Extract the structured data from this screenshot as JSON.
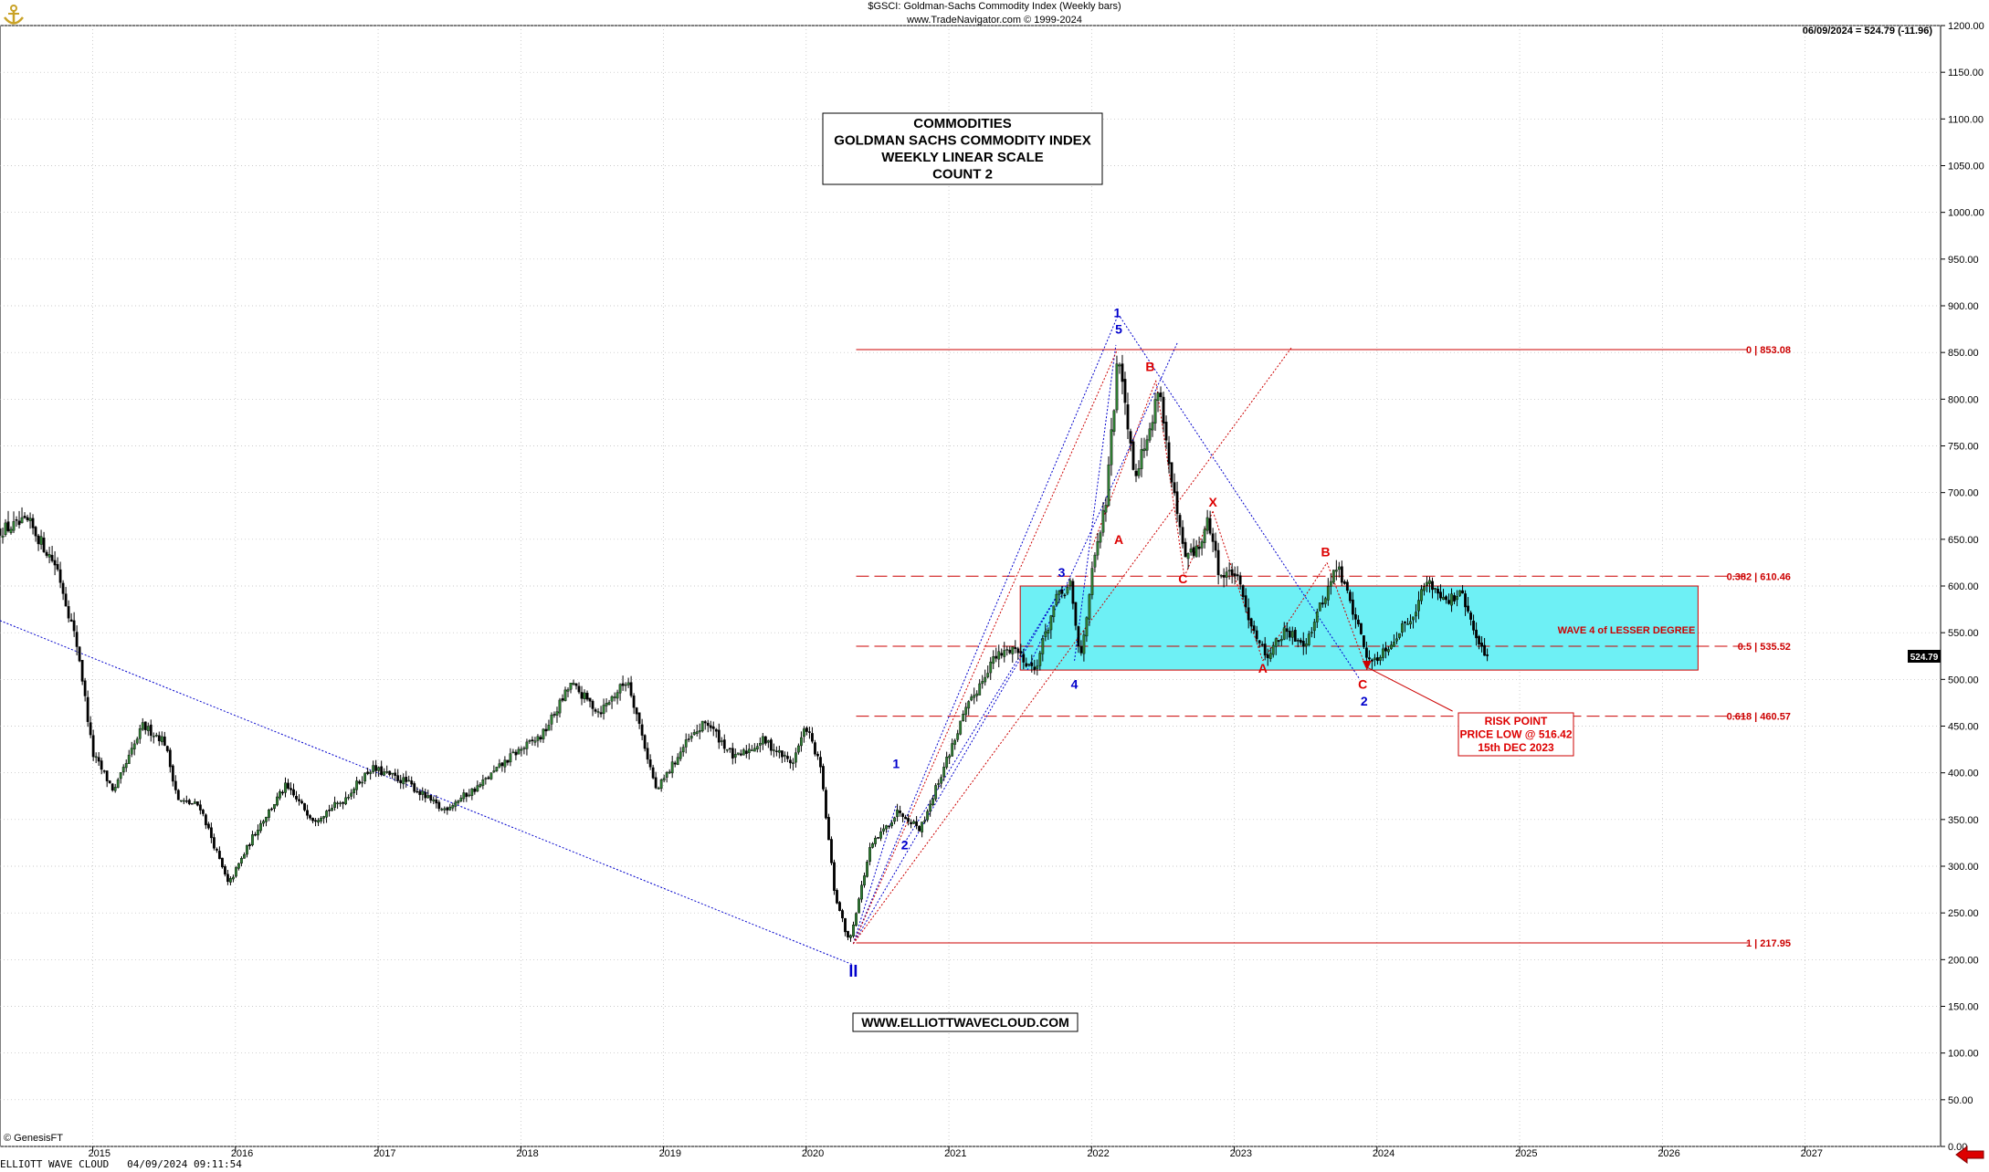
{
  "header": {
    "line1": "$GSCI:  Goldman-Sachs Commodity Index  (Weekly bars)",
    "line2": "www.TradeNavigator.com © 1999-2024",
    "last_quote": "06/09/2024 = 524.79 (-11.96)"
  },
  "footer": {
    "app_label": "ELLIOTT WAVE CLOUD",
    "timestamp": "04/09/2024 09:11:54",
    "copyright": "© GenesisFT"
  },
  "icons": {
    "logo": "gold-anchor-logo-icon",
    "nav": "red-left-arrow-icon"
  },
  "chart_data": {
    "type": "candlestick",
    "ylim": [
      0,
      1200
    ],
    "yticks": [
      0,
      50,
      100,
      150,
      200,
      250,
      300,
      350,
      400,
      450,
      500,
      550,
      600,
      650,
      700,
      750,
      800,
      850,
      900,
      950,
      1000,
      1050,
      1100,
      1150,
      1200
    ],
    "ytick_labels": [
      "0.00",
      "50.00",
      "100.00",
      "150.00",
      "200.00",
      "250.00",
      "300.00",
      "350.00",
      "400.00",
      "450.00",
      "500.00",
      "550.00",
      "600.00",
      "650.00",
      "700.00",
      "750.00",
      "800.00",
      "850.00",
      "900.00",
      "950.00",
      "1000.00",
      "1050.00",
      "1100.00",
      "1150.00",
      "1200.00"
    ],
    "xlim": [
      2014.35,
      2027.95
    ],
    "x_ticks": [
      2015,
      2016,
      2017,
      2018,
      2019,
      2020,
      2021,
      2022,
      2023,
      2024,
      2025,
      2026,
      2027
    ],
    "x_tick_labels": [
      "2015",
      "2016",
      "2017",
      "2018",
      "2019",
      "2020",
      "2021",
      "2022",
      "2023",
      "2024",
      "2025",
      "2026",
      "2027"
    ],
    "grid": true,
    "last_price": 524.79,
    "last_price_label": "524.79",
    "colors": {
      "up": "#2e7d32",
      "down": "#000000",
      "fib": "#cc0000",
      "blue": "#0000cc",
      "red_label": "#dd0000",
      "box": "#6ef0f5"
    },
    "price_path": [
      [
        2014.35,
        660
      ],
      [
        2014.55,
        668
      ],
      [
        2014.75,
        620
      ],
      [
        2014.9,
        530
      ],
      [
        2015.0,
        420
      ],
      [
        2015.15,
        380
      ],
      [
        2015.35,
        450
      ],
      [
        2015.5,
        435
      ],
      [
        2015.6,
        370
      ],
      [
        2015.75,
        365
      ],
      [
        2015.95,
        280
      ],
      [
        2016.15,
        340
      ],
      [
        2016.35,
        385
      ],
      [
        2016.55,
        350
      ],
      [
        2016.75,
        370
      ],
      [
        2016.95,
        405
      ],
      [
        2017.2,
        390
      ],
      [
        2017.45,
        360
      ],
      [
        2017.7,
        385
      ],
      [
        2017.95,
        420
      ],
      [
        2018.15,
        440
      ],
      [
        2018.35,
        495
      ],
      [
        2018.55,
        465
      ],
      [
        2018.75,
        500
      ],
      [
        2018.95,
        380
      ],
      [
        2019.15,
        430
      ],
      [
        2019.3,
        455
      ],
      [
        2019.5,
        415
      ],
      [
        2019.7,
        435
      ],
      [
        2019.9,
        410
      ],
      [
        2020.0,
        450
      ],
      [
        2020.1,
        405
      ],
      [
        2020.2,
        270
      ],
      [
        2020.3,
        218
      ],
      [
        2020.45,
        320
      ],
      [
        2020.65,
        360
      ],
      [
        2020.8,
        340
      ],
      [
        2020.95,
        400
      ],
      [
        2021.1,
        460
      ],
      [
        2021.3,
        520
      ],
      [
        2021.45,
        535
      ],
      [
        2021.6,
        510
      ],
      [
        2021.75,
        585
      ],
      [
        2021.85,
        600
      ],
      [
        2021.92,
        520
      ],
      [
        2022.0,
        610
      ],
      [
        2022.1,
        690
      ],
      [
        2022.19,
        853
      ],
      [
        2022.3,
        720
      ],
      [
        2022.42,
        770
      ],
      [
        2022.47,
        820
      ],
      [
        2022.55,
        720
      ],
      [
        2022.65,
        630
      ],
      [
        2022.75,
        640
      ],
      [
        2022.82,
        670
      ],
      [
        2022.9,
        610
      ],
      [
        2023.0,
        615
      ],
      [
        2023.12,
        560
      ],
      [
        2023.22,
        525
      ],
      [
        2023.35,
        550
      ],
      [
        2023.5,
        540
      ],
      [
        2023.65,
        595
      ],
      [
        2023.72,
        622
      ],
      [
        2023.82,
        580
      ],
      [
        2023.95,
        516.42
      ],
      [
        2024.1,
        540
      ],
      [
        2024.25,
        570
      ],
      [
        2024.35,
        605
      ],
      [
        2024.5,
        585
      ],
      [
        2024.6,
        590
      ],
      [
        2024.7,
        540
      ],
      [
        2024.78,
        524.79
      ]
    ],
    "fibonacci_levels": [
      {
        "ratio_label": "0 | 853.08",
        "value": 853.08
      },
      {
        "ratio_label": "0.382 | 610.46",
        "value": 610.46
      },
      {
        "ratio_label": "0.5 | 535.52",
        "value": 535.52
      },
      {
        "ratio_label": "0.618 | 460.57",
        "value": 460.57
      },
      {
        "ratio_label": "1 | 217.95",
        "value": 217.95
      }
    ],
    "wave4_box": {
      "x_start": 2021.5,
      "x_end": 2026.25,
      "y_low": 510,
      "y_high": 600,
      "label": "WAVE 4 of LESSER DEGREE"
    },
    "wave_labels": [
      {
        "text": "II",
        "x": 2020.33,
        "y": 182,
        "color": "blue",
        "size": "large"
      },
      {
        "text": "1",
        "x": 2020.63,
        "y": 405,
        "color": "blue"
      },
      {
        "text": "2",
        "x": 2020.69,
        "y": 318,
        "color": "blue"
      },
      {
        "text": "3",
        "x": 2021.79,
        "y": 610,
        "color": "blue"
      },
      {
        "text": "4",
        "x": 2021.88,
        "y": 490,
        "color": "blue"
      },
      {
        "text": "5",
        "x": 2022.19,
        "y": 870,
        "color": "blue"
      },
      {
        "text": "1",
        "x": 2022.18,
        "y": 888,
        "color": "blue"
      },
      {
        "text": "A",
        "x": 2022.19,
        "y": 645,
        "color": "red"
      },
      {
        "text": "B",
        "x": 2022.41,
        "y": 830,
        "color": "red"
      },
      {
        "text": "C",
        "x": 2022.64,
        "y": 603,
        "color": "red"
      },
      {
        "text": "X",
        "x": 2022.85,
        "y": 685,
        "color": "red"
      },
      {
        "text": "A",
        "x": 2023.2,
        "y": 507,
        "color": "red"
      },
      {
        "text": "B",
        "x": 2023.64,
        "y": 632,
        "color": "red"
      },
      {
        "text": "C",
        "x": 2023.9,
        "y": 490,
        "color": "red"
      },
      {
        "text": "2",
        "x": 2023.91,
        "y": 472,
        "color": "blue"
      }
    ],
    "annotations": {
      "title_box": [
        "COMMODITIES",
        "GOLDMAN SACHS COMMODITY INDEX",
        "WEEKLY LINEAR SCALE",
        "COUNT 2"
      ],
      "risk_box": [
        "RISK POINT",
        "PRICE LOW @ 516.42",
        "15th DEC 2023"
      ],
      "website": "WWW.ELLIOTTWAVECLOUD.COM"
    }
  }
}
